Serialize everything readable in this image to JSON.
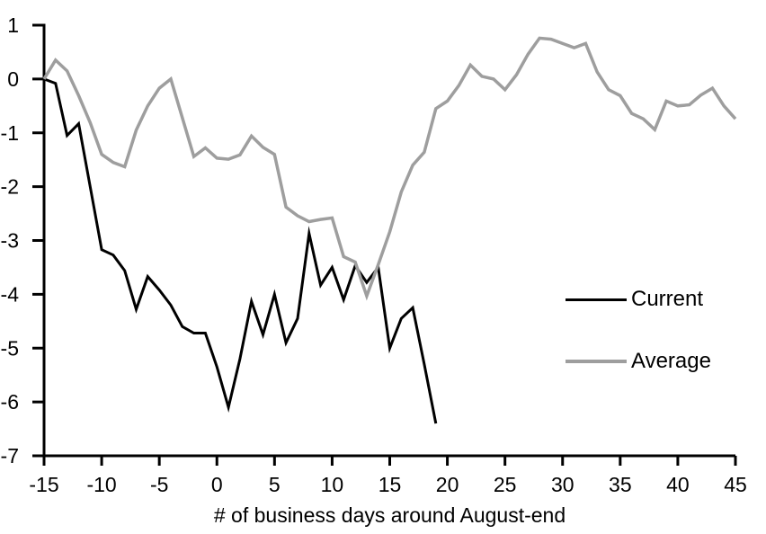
{
  "chart_data": {
    "type": "line",
    "title": "",
    "xlabel": "# of business days around August-end",
    "ylabel": "",
    "xlim": [
      -15,
      45
    ],
    "ylim": [
      -7,
      1
    ],
    "xticks": [
      -15,
      -10,
      -5,
      0,
      5,
      10,
      15,
      20,
      25,
      30,
      35,
      40,
      45
    ],
    "yticks": [
      1,
      0,
      -1,
      -2,
      -3,
      -4,
      -5,
      -6,
      -7
    ],
    "grid": false,
    "legend_position": "middle-right",
    "background_color": "#ffffff",
    "axis_color": "#000000",
    "x": [
      -15,
      -14,
      -13,
      -12,
      -11,
      -10,
      -9,
      -8,
      -7,
      -6,
      -5,
      -4,
      -3,
      -2,
      -1,
      0,
      1,
      2,
      3,
      4,
      5,
      6,
      7,
      8,
      9,
      10,
      11,
      12,
      13,
      14,
      15,
      16,
      17,
      18,
      19,
      20,
      21,
      22,
      23,
      24,
      25,
      26,
      27,
      28,
      29,
      30,
      31,
      32,
      33,
      34,
      35,
      36,
      37,
      38,
      39,
      40,
      41,
      42,
      43,
      44,
      45
    ],
    "series": [
      {
        "name": "Current",
        "color": "#000000",
        "stroke_width": 3,
        "values": [
          0,
          -0.08,
          -1.05,
          -0.83,
          -2.0,
          -3.17,
          -3.27,
          -3.56,
          -4.28,
          -3.67,
          -3.92,
          -4.2,
          -4.6,
          -4.72,
          -4.72,
          -5.35,
          -6.1,
          -5.2,
          -4.13,
          -4.75,
          -4.0,
          -4.9,
          -4.45,
          -2.87,
          -3.83,
          -3.5,
          -4.1,
          -3.47,
          -3.78,
          -3.5,
          -5.0,
          -4.45,
          -4.25,
          -5.3,
          -6.4,
          null,
          null,
          null,
          null,
          null,
          null,
          null,
          null,
          null,
          null,
          null,
          null,
          null,
          null,
          null,
          null,
          null,
          null,
          null,
          null,
          null,
          null,
          null,
          null,
          null,
          null
        ]
      },
      {
        "name": "Average",
        "color": "#9e9e9e",
        "stroke_width": 3.5,
        "values": [
          0,
          0.35,
          0.15,
          -0.31,
          -0.81,
          -1.4,
          -1.55,
          -1.63,
          -0.95,
          -0.5,
          -0.17,
          0.0,
          -0.72,
          -1.44,
          -1.28,
          -1.47,
          -1.49,
          -1.41,
          -1.06,
          -1.27,
          -1.4,
          -2.38,
          -2.54,
          -2.65,
          -2.61,
          -2.58,
          -3.3,
          -3.4,
          -4.03,
          -3.45,
          -2.84,
          -2.1,
          -1.6,
          -1.36,
          -0.55,
          -0.41,
          -0.12,
          0.26,
          0.05,
          0.0,
          -0.2,
          0.08,
          0.46,
          0.76,
          0.74,
          0.66,
          0.58,
          0.66,
          0.13,
          -0.2,
          -0.31,
          -0.64,
          -0.74,
          -0.94,
          -0.41,
          -0.5,
          -0.48,
          -0.3,
          -0.17,
          -0.5,
          -0.74
        ]
      }
    ]
  }
}
